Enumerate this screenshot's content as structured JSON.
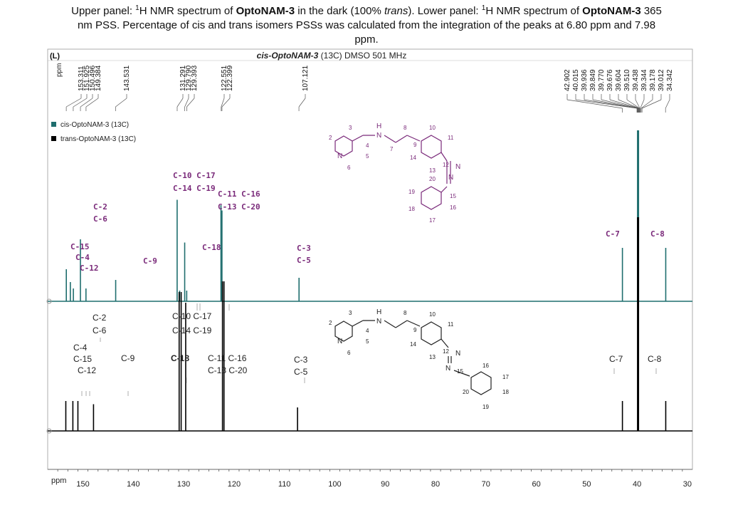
{
  "caption": {
    "line1_a": "Upper panel: ",
    "sup1": "1",
    "line1_b": "H NMR spectrum of ",
    "name1": "OptoNAM-3",
    "line1_c": " in the dark (100% ",
    "trans_word": "trans",
    "line1_d": "). Lower panel: ",
    "sup2": "1",
    "line1_e": "H NMR spectrum of ",
    "name2": "OptoNAM-3",
    "line1_f": " 365",
    "line2": "nm PSS. Percentage of cis and trans isomers PSSs was calculated from the integration of the peaks at 6.80 ppm and 7.98",
    "line3": "ppm."
  },
  "colors": {
    "upper_trace": "#1f6e6e",
    "lower_trace": "#000000",
    "label_purple": "#7a2a7a",
    "legend_green": "#1f6e6e"
  },
  "chart_data": {
    "type": "line",
    "title": "cis-OptoNAM-3 (13C) DMSO 501 MHz",
    "title_italic": "cis-OptoNAM-3",
    "title_rest": " (13C) DMSO 501 MHz",
    "panel_tag": "(L)",
    "ylabel": "ppm",
    "xlabel": "ppm",
    "xlim": [
      157,
      29
    ],
    "x_reversed": true,
    "x_ticks": [
      150,
      140,
      130,
      120,
      110,
      100,
      90,
      80,
      70,
      60,
      50,
      40,
      30
    ],
    "legend": {
      "position": "top-left",
      "entries": [
        {
          "name": "cis-OptoNAM-3 (13C)",
          "color": "#1f6e6e"
        },
        {
          "name": "trans-OptoNAM-3 (13C)",
          "color": "#000000"
        }
      ]
    },
    "peak_list_left": [
      "153.311",
      "151.925",
      "150.496",
      "149.384",
      "143.531",
      "131.291",
      "129.790",
      "129.393",
      "122.551",
      "122.399",
      "107.121"
    ],
    "peak_list_right": [
      "42.902",
      "40.015",
      "39.936",
      "39.849",
      "39.770",
      "39.676",
      "39.604",
      "39.510",
      "39.438",
      "39.344",
      "39.178",
      "39.012",
      "34.342"
    ],
    "series": [
      {
        "name": "cis-OptoNAM-3 (13C)",
        "peaks": [
          {
            "x": 153.3,
            "h": 0.3
          },
          {
            "x": 152.5,
            "h": 0.18
          },
          {
            "x": 151.9,
            "h": 0.12
          },
          {
            "x": 150.5,
            "h": 0.58
          },
          {
            "x": 149.4,
            "h": 0.12
          },
          {
            "x": 143.5,
            "h": 0.2
          },
          {
            "x": 131.3,
            "h": 0.95
          },
          {
            "x": 130.8,
            "h": 0.1
          },
          {
            "x": 129.8,
            "h": 0.55
          },
          {
            "x": 129.4,
            "h": 0.1
          },
          {
            "x": 122.6,
            "h": 0.9
          },
          {
            "x": 122.4,
            "h": 0.85
          },
          {
            "x": 107.1,
            "h": 0.22
          },
          {
            "x": 42.9,
            "h": 0.5
          },
          {
            "x": 39.8,
            "h": 1.6
          },
          {
            "x": 34.3,
            "h": 0.5
          }
        ]
      },
      {
        "name": "trans-OptoNAM-3 (13C)",
        "peaks": [
          {
            "x": 153.4,
            "h": 0.28
          },
          {
            "x": 152.0,
            "h": 0.28
          },
          {
            "x": 151.0,
            "h": 0.28
          },
          {
            "x": 147.9,
            "h": 0.25
          },
          {
            "x": 130.9,
            "h": 1.3
          },
          {
            "x": 130.5,
            "h": 1.3
          },
          {
            "x": 129.6,
            "h": 1.2
          },
          {
            "x": 122.3,
            "h": 1.4
          },
          {
            "x": 122.0,
            "h": 1.4
          },
          {
            "x": 107.4,
            "h": 0.22
          },
          {
            "x": 42.9,
            "h": 0.28
          },
          {
            "x": 39.8,
            "h": 2.0
          },
          {
            "x": 34.3,
            "h": 0.28
          }
        ]
      }
    ]
  },
  "upper_labels": {
    "c10_c17": "C-10  C-17",
    "c14_c19": "C-14  C-19",
    "c11_c16": "C-11  C-16",
    "c13_c20": "C-13  C-20",
    "c2": "C-2",
    "c6": "C-6",
    "c15": "C-15",
    "c4": "C-4",
    "c12": "C-12",
    "c9": "C-9",
    "c18": "C-18",
    "c3": "C-3",
    "c5": "C-5",
    "c7": "C-7",
    "c8": "C-8"
  },
  "lower_labels": {
    "c2": "C-2",
    "c6": "C-6",
    "c4": "C-4",
    "c15": "C-15",
    "c12": "C-12",
    "c9": "C-9",
    "c10_c17": "C-10   C-17",
    "c14_c19": "C-14   C-19",
    "c18": "C-18",
    "c11_c16": "C-11  C-16",
    "c13_c20": "C-13  C-20",
    "c3": "C-3",
    "c5": "C-5",
    "c7": "C-7",
    "c8": "C-8"
  },
  "structure_cis": {
    "atom_n1": "N",
    "atom_h": "H",
    "atom_nh": "N",
    "atom_n2": "N",
    "atom_n3": "N",
    "nums": [
      "2",
      "3",
      "4",
      "5",
      "6",
      "7",
      "8",
      "9",
      "10",
      "11",
      "12",
      "13",
      "14",
      "15",
      "16",
      "17",
      "18",
      "19",
      "20"
    ]
  },
  "structure_trans": {
    "atom_n1": "N",
    "atom_h": "H",
    "atom_nh": "N",
    "atom_n2": "N",
    "atom_n3": "N",
    "nums": [
      "2",
      "3",
      "4",
      "5",
      "6",
      "8",
      "9",
      "10",
      "11",
      "12",
      "13",
      "14",
      "15",
      "16",
      "17",
      "18",
      "19",
      "20"
    ]
  }
}
